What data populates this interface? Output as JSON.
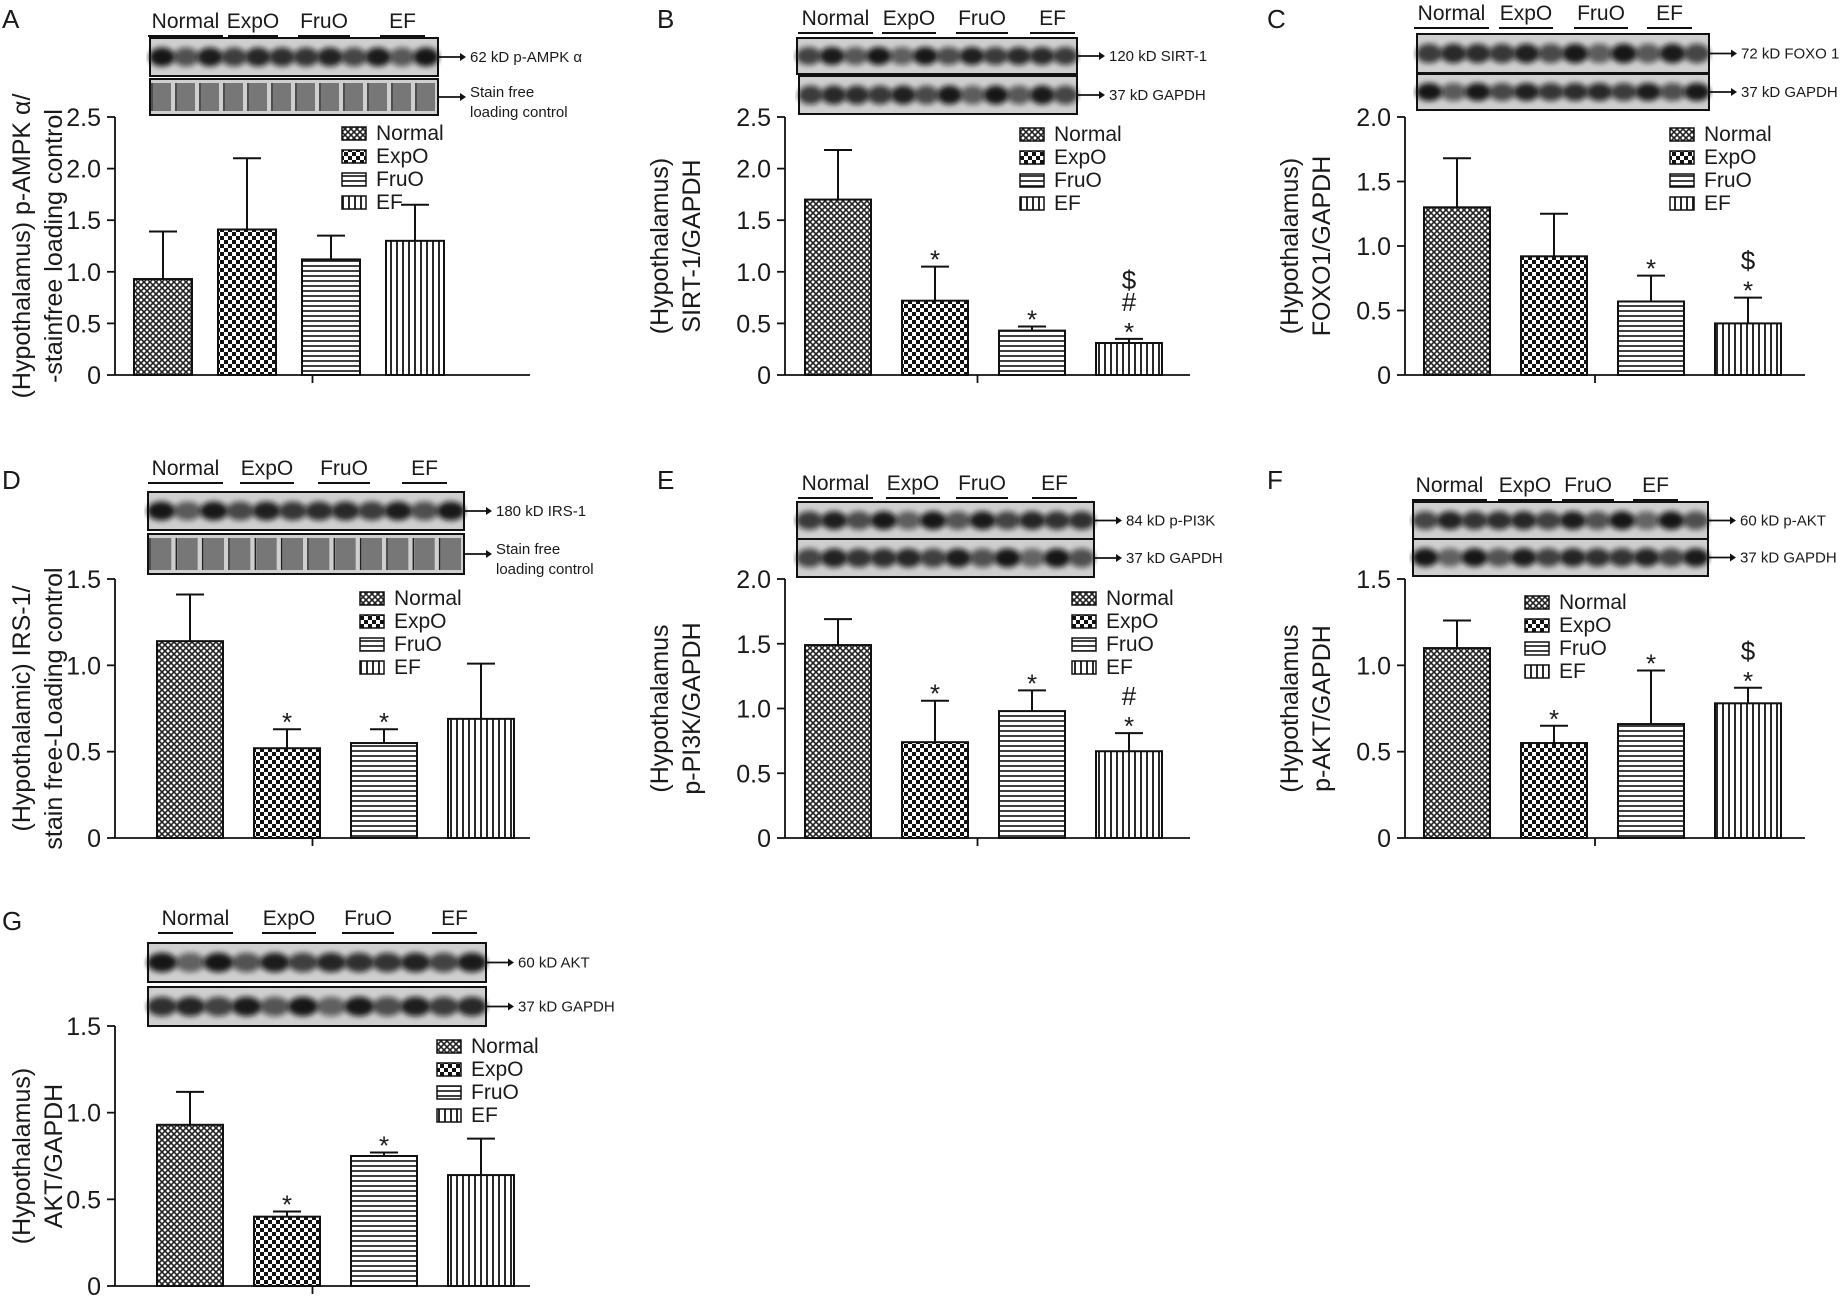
{
  "bar_patterns": [
    "crosshatch",
    "checker",
    "hlines",
    "vlines"
  ],
  "chart_data": [
    {
      "type": "bar",
      "letter": "A",
      "categories": [
        "Normal",
        "ExpO",
        "FruO",
        "EF"
      ],
      "values": [
        0.93,
        1.41,
        1.12,
        1.3
      ],
      "errors": [
        0.46,
        0.69,
        0.23,
        0.35
      ],
      "significance": [
        "",
        "",
        "",
        ""
      ],
      "ylim": [
        0,
        2.5
      ],
      "yticks": [
        "0",
        "0.5",
        "1.0",
        "1.5",
        "2.0",
        "2.5"
      ],
      "ylabel_lines": [
        "(Hypothalamus) p-AMPK α/",
        "-stainfree loading control"
      ],
      "legend": [
        "Normal",
        "ExpO",
        "FruO",
        "EF"
      ],
      "lanes": [
        "Normal",
        "ExpO",
        "FruO",
        "EF"
      ],
      "blots": [
        {
          "label_lines": [
            "62 kD p-AMPK α"
          ],
          "style": "bands"
        },
        {
          "label_lines": [
            "Stain free",
            "loading control"
          ],
          "style": "stain"
        }
      ]
    },
    {
      "type": "bar",
      "letter": "B",
      "categories": [
        "Normal",
        "ExpO",
        "FruO",
        "EF"
      ],
      "values": [
        1.7,
        0.72,
        0.43,
        0.31
      ],
      "errors": [
        0.48,
        0.33,
        0.04,
        0.04
      ],
      "significance": [
        "",
        "*",
        "*",
        "$\n#\n*"
      ],
      "ylim": [
        0,
        2.5
      ],
      "yticks": [
        "0",
        "0.5",
        "1.0",
        "1.5",
        "2.0",
        "2.5"
      ],
      "ylabel_lines": [
        "(Hypothalamus)",
        "SIRT-1/GAPDH"
      ],
      "legend": [
        "Normal",
        "ExpO",
        "FruO",
        "EF"
      ],
      "lanes": [
        "Normal",
        "ExpO",
        "FruO",
        "EF"
      ],
      "blots": [
        {
          "label_lines": [
            "120 kD SIRT-1"
          ],
          "style": "bands"
        },
        {
          "label_lines": [
            "37 kD GAPDH"
          ],
          "style": "bands"
        }
      ]
    },
    {
      "type": "bar",
      "letter": "C",
      "categories": [
        "Normal",
        "ExpO",
        "FruO",
        "EF"
      ],
      "values": [
        1.3,
        0.92,
        0.57,
        0.4
      ],
      "errors": [
        0.38,
        0.33,
        0.2,
        0.2
      ],
      "significance": [
        "",
        "",
        "*",
        "$\n*"
      ],
      "ylim": [
        0,
        2.0
      ],
      "yticks": [
        "0",
        "0.5",
        "1.0",
        "1.5",
        "2.0"
      ],
      "ylabel_lines": [
        "(Hypothalamus)",
        "FOXO1/GAPDH"
      ],
      "legend": [
        "Normal",
        "ExpO",
        "FruO",
        "EF"
      ],
      "lanes": [
        "Normal",
        "ExpO",
        "FruO",
        "EF"
      ],
      "blots": [
        {
          "label_lines": [
            "72 kD FOXO 1"
          ],
          "style": "bands"
        },
        {
          "label_lines": [
            "37 kD GAPDH"
          ],
          "style": "bands"
        }
      ]
    },
    {
      "type": "bar",
      "letter": "D",
      "categories": [
        "Normal",
        "ExpO",
        "FruO",
        "EF"
      ],
      "values": [
        1.14,
        0.52,
        0.55,
        0.69
      ],
      "errors": [
        0.27,
        0.11,
        0.08,
        0.32
      ],
      "significance": [
        "",
        "*",
        "*",
        ""
      ],
      "ylim": [
        0,
        1.5
      ],
      "yticks": [
        "0",
        "0.5",
        "1.0",
        "1.5"
      ],
      "ylabel_lines": [
        "(Hypothalamic) IRS-1/",
        "stain free-Loading control"
      ],
      "legend": [
        "Normal",
        "ExpO",
        "FruO",
        "EF"
      ],
      "lanes": [
        "Normal",
        "ExpO",
        "FruO",
        "EF"
      ],
      "blots": [
        {
          "label_lines": [
            "180 kD IRS-1"
          ],
          "style": "bands"
        },
        {
          "label_lines": [
            "Stain free",
            "loading control"
          ],
          "style": "stain"
        }
      ]
    },
    {
      "type": "bar",
      "letter": "E",
      "categories": [
        "Normal",
        "ExpO",
        "FruO",
        "EF"
      ],
      "values": [
        1.49,
        0.74,
        0.98,
        0.67
      ],
      "errors": [
        0.2,
        0.32,
        0.16,
        0.14
      ],
      "significance": [
        "",
        "*",
        "*",
        "#\n*"
      ],
      "ylim": [
        0,
        2.0
      ],
      "yticks": [
        "0",
        "0.5",
        "1.0",
        "1.5",
        "2.0"
      ],
      "ylabel_lines": [
        "(Hypothalamus",
        "p-PI3K/GAPDH"
      ],
      "legend": [
        "Normal",
        "ExpO",
        "FruO",
        "EF"
      ],
      "lanes": [
        "Normal",
        "ExpO",
        "FruO",
        "EF"
      ],
      "blots": [
        {
          "label_lines": [
            "84 kD p-PI3K"
          ],
          "style": "bands"
        },
        {
          "label_lines": [
            "37 kD GAPDH"
          ],
          "style": "bands"
        }
      ]
    },
    {
      "type": "bar",
      "letter": "F",
      "categories": [
        "Normal",
        "ExpO",
        "FruO",
        "EF"
      ],
      "values": [
        1.1,
        0.55,
        0.66,
        0.78
      ],
      "errors": [
        0.16,
        0.1,
        0.31,
        0.09
      ],
      "significance": [
        "",
        "*",
        "*",
        "$\n*"
      ],
      "ylim": [
        0,
        1.5
      ],
      "yticks": [
        "0",
        "0.5",
        "1.0",
        "1.5"
      ],
      "ylabel_lines": [
        "(Hypothalamus",
        "p-AKT/GAPDH"
      ],
      "legend": [
        "Normal",
        "ExpO",
        "FruO",
        "EF"
      ],
      "lanes": [
        "Normal",
        "ExpO",
        "FruO",
        "EF"
      ],
      "blots": [
        {
          "label_lines": [
            "60 kD p-AKT"
          ],
          "style": "bands"
        },
        {
          "label_lines": [
            "37 kD GAPDH"
          ],
          "style": "bands"
        }
      ]
    },
    {
      "type": "bar",
      "letter": "G",
      "categories": [
        "Normal",
        "ExpO",
        "FruO",
        "EF"
      ],
      "values": [
        0.93,
        0.4,
        0.75,
        0.64
      ],
      "errors": [
        0.19,
        0.03,
        0.02,
        0.21
      ],
      "significance": [
        "",
        "*",
        "*",
        ""
      ],
      "ylim": [
        0,
        1.5
      ],
      "yticks": [
        "0",
        "0.5",
        "1.0",
        "1.5"
      ],
      "ylabel_lines": [
        "(Hypothalamus)",
        "AKT/GAPDH"
      ],
      "legend": [
        "Normal",
        "ExpO",
        "FruO",
        "EF"
      ],
      "lanes": [
        "Normal",
        "ExpO",
        "FruO",
        "EF"
      ],
      "blots": [
        {
          "label_lines": [
            "60 kD AKT"
          ],
          "style": "bands"
        },
        {
          "label_lines": [
            "37 kD GAPDH"
          ],
          "style": "bands"
        }
      ]
    }
  ]
}
